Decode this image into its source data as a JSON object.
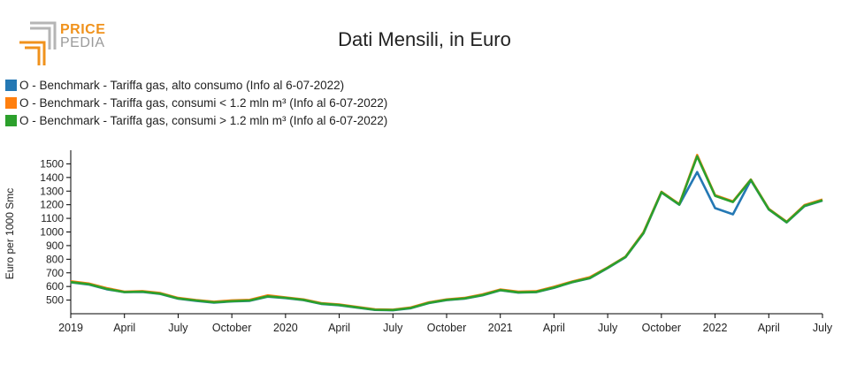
{
  "logo": {
    "line1": "PRICE",
    "line2": "PEDIA"
  },
  "colors": {
    "accent": "#f0921c",
    "series1": "#2478b4",
    "series2": "#ff7f0e",
    "series3": "#2ca02c"
  },
  "chart_data": {
    "type": "line",
    "title": "Dati Mensili, in Euro",
    "xlabel": "",
    "ylabel": "Euro per 1000 Smc",
    "ylim": [
      400,
      1600
    ],
    "yticks": [
      500,
      600,
      700,
      800,
      900,
      1000,
      1100,
      1200,
      1300,
      1400,
      1500
    ],
    "xticks": [
      "2019",
      "April",
      "July",
      "October",
      "2020",
      "April",
      "July",
      "October",
      "2021",
      "April",
      "July",
      "October",
      "2022",
      "April",
      "July"
    ],
    "x": [
      "2019-01",
      "2019-02",
      "2019-03",
      "2019-04",
      "2019-05",
      "2019-06",
      "2019-07",
      "2019-08",
      "2019-09",
      "2019-10",
      "2019-11",
      "2019-12",
      "2020-01",
      "2020-02",
      "2020-03",
      "2020-04",
      "2020-05",
      "2020-06",
      "2020-07",
      "2020-08",
      "2020-09",
      "2020-10",
      "2020-11",
      "2020-12",
      "2021-01",
      "2021-02",
      "2021-03",
      "2021-04",
      "2021-05",
      "2021-06",
      "2021-07",
      "2021-08",
      "2021-09",
      "2021-10",
      "2021-11",
      "2021-12",
      "2022-01",
      "2022-02",
      "2022-03",
      "2022-04",
      "2022-05",
      "2022-06",
      "2022-07"
    ],
    "legend_position": "top-left",
    "grid": false,
    "series": [
      {
        "name": "O - Benchmark - Tariffa gas, alto consumo (Info al 6-07-2022)",
        "values": [
          630,
          615,
          580,
          558,
          560,
          545,
          510,
          495,
          482,
          490,
          495,
          525,
          515,
          500,
          472,
          462,
          445,
          428,
          425,
          440,
          478,
          500,
          510,
          535,
          572,
          555,
          558,
          590,
          630,
          660,
          735,
          815,
          990,
          1290,
          1200,
          1440,
          1175,
          1130,
          1380,
          1165,
          1070,
          1190,
          1230
        ]
      },
      {
        "name": "O - Benchmark - Tariffa gas, consumi < 1.2 mln m³ (Info al 6-07-2022)",
        "values": [
          638,
          622,
          588,
          562,
          566,
          552,
          516,
          500,
          488,
          498,
          502,
          535,
          520,
          505,
          478,
          468,
          450,
          432,
          430,
          446,
          484,
          505,
          516,
          542,
          578,
          562,
          565,
          598,
          636,
          668,
          740,
          820,
          998,
          1295,
          1205,
          1565,
          1270,
          1225,
          1385,
          1170,
          1075,
          1198,
          1238
        ]
      },
      {
        "name": "O - Benchmark - Tariffa gas, consumi > 1.2 mln m³ (Info al 6-07-2022)",
        "values": [
          632,
          617,
          582,
          559,
          562,
          547,
          512,
          497,
          484,
          492,
          497,
          528,
          517,
          502,
          474,
          464,
          447,
          429,
          427,
          442,
          480,
          502,
          512,
          537,
          574,
          557,
          560,
          592,
          632,
          662,
          737,
          817,
          993,
          1292,
          1202,
          1555,
          1265,
          1220,
          1383,
          1167,
          1072,
          1193,
          1233
        ]
      }
    ]
  }
}
